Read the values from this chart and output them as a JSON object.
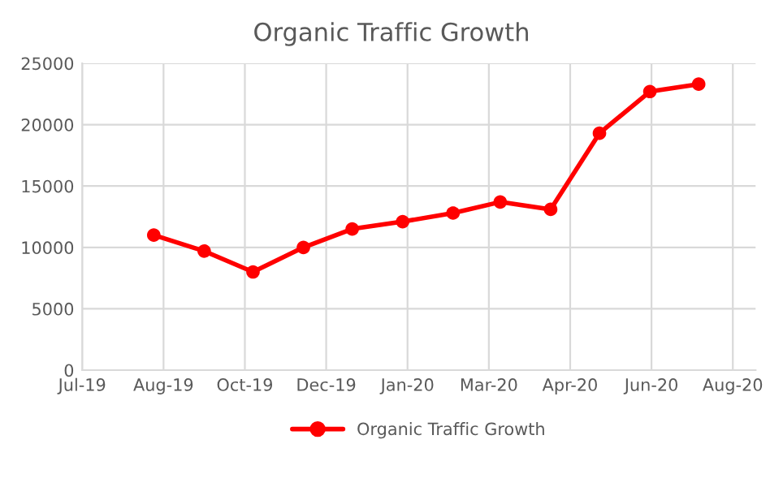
{
  "chart_data": {
    "type": "line",
    "title": "Organic Traffic Growth",
    "x": [
      "2019-08-17",
      "2019-09-17",
      "2019-10-17",
      "2019-11-17",
      "2019-12-17",
      "2020-01-17",
      "2020-02-17",
      "2020-03-17",
      "2020-04-17",
      "2020-05-17",
      "2020-06-17",
      "2020-07-17"
    ],
    "series": [
      {
        "name": "Organic Traffic Growth",
        "color": "#ff0000",
        "values": [
          11000,
          9700,
          8000,
          10000,
          11500,
          12100,
          12800,
          13700,
          13100,
          19300,
          22700,
          23300
        ]
      }
    ],
    "xlim": [
      "2019-07-04",
      "2020-08-21"
    ],
    "xticks": [
      {
        "value": "2019-07-04",
        "label": "Jul-19"
      },
      {
        "value": "2019-08-23",
        "label": "Aug-19"
      },
      {
        "value": "2019-10-12",
        "label": "Oct-19"
      },
      {
        "value": "2019-12-01",
        "label": "Dec-19"
      },
      {
        "value": "2020-01-20",
        "label": "Jan-20"
      },
      {
        "value": "2020-03-10",
        "label": "Mar-20"
      },
      {
        "value": "2020-04-29",
        "label": "Apr-20"
      },
      {
        "value": "2020-06-18",
        "label": "Jun-20"
      },
      {
        "value": "2020-08-07",
        "label": "Aug-20"
      }
    ],
    "ylim": [
      0,
      25000
    ],
    "yticks": [
      0,
      5000,
      10000,
      15000,
      20000,
      25000
    ],
    "grid": true,
    "legend": "bottom",
    "marker": "circle",
    "line_style": "solid"
  }
}
